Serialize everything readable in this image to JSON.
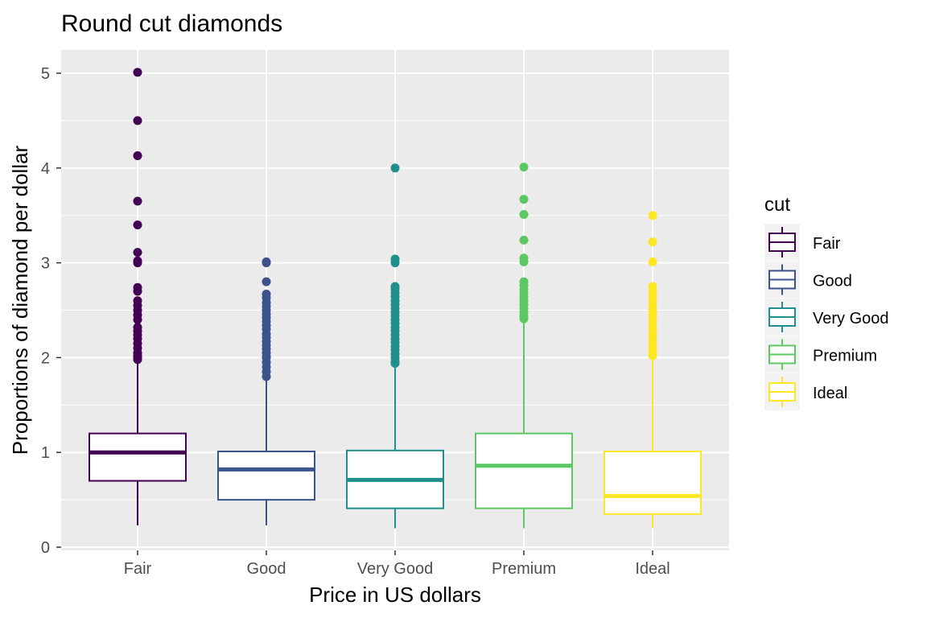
{
  "chart_data": {
    "type": "boxplot",
    "title": "Round cut diamonds",
    "xlabel": "Price in US dollars",
    "ylabel": "Proportions of diamond per dollar",
    "categories": [
      "Fair",
      "Good",
      "Very Good",
      "Premium",
      "Ideal"
    ],
    "ylim": [
      0,
      5.1
    ],
    "yticks": [
      0,
      1,
      2,
      3,
      4,
      5
    ],
    "grid": true,
    "legend": {
      "title": "cut",
      "position": "right"
    },
    "series": [
      {
        "name": "Fair",
        "color": "#440154",
        "whisker_low": 0.23,
        "q1": 0.7,
        "median": 1.0,
        "q3": 1.2,
        "whisker_high": 1.95,
        "outliers": [
          5.01,
          4.5,
          4.13,
          3.65,
          3.4,
          3.11,
          3.02,
          3.0,
          2.74,
          2.7,
          2.6,
          2.55,
          2.5,
          2.45,
          2.4,
          2.32,
          2.28,
          2.24,
          2.2,
          2.15,
          2.1,
          2.05,
          2.02,
          2.0,
          1.98
        ]
      },
      {
        "name": "Good",
        "color": "#3B528B",
        "whisker_low": 0.23,
        "q1": 0.5,
        "median": 0.82,
        "q3": 1.01,
        "whisker_high": 1.77,
        "outliers": [
          3.01,
          3.0,
          2.8,
          2.67,
          2.63,
          2.58,
          2.54,
          2.5,
          2.46,
          2.42,
          2.38,
          2.34,
          2.3,
          2.25,
          2.21,
          2.17,
          2.13,
          2.09,
          2.05,
          2.01,
          2.0,
          1.95,
          1.9,
          1.85,
          1.8
        ]
      },
      {
        "name": "Very Good",
        "color": "#21908C",
        "whisker_low": 0.2,
        "q1": 0.41,
        "median": 0.71,
        "q3": 1.02,
        "whisker_high": 1.93,
        "outliers": [
          4.0,
          3.04,
          3.0,
          2.75,
          2.72,
          2.68,
          2.64,
          2.6,
          2.56,
          2.52,
          2.48,
          2.44,
          2.4,
          2.36,
          2.32,
          2.28,
          2.24,
          2.2,
          2.16,
          2.12,
          2.08,
          2.04,
          2.0,
          1.96,
          1.94
        ]
      },
      {
        "name": "Premium",
        "color": "#5DC863",
        "whisker_low": 0.2,
        "q1": 0.41,
        "median": 0.86,
        "q3": 1.2,
        "whisker_high": 2.38,
        "outliers": [
          4.01,
          3.67,
          3.51,
          3.24,
          3.05,
          3.01,
          2.8,
          2.76,
          2.72,
          2.68,
          2.64,
          2.6,
          2.56,
          2.52,
          2.48,
          2.44,
          2.41
        ]
      },
      {
        "name": "Ideal",
        "color": "#FDE725",
        "whisker_low": 0.2,
        "q1": 0.35,
        "median": 0.54,
        "q3": 1.01,
        "whisker_high": 2.0,
        "outliers": [
          3.5,
          3.22,
          3.01,
          2.75,
          2.7,
          2.65,
          2.6,
          2.55,
          2.5,
          2.45,
          2.4,
          2.35,
          2.3,
          2.25,
          2.2,
          2.15,
          2.1,
          2.05,
          2.02
        ]
      }
    ]
  }
}
